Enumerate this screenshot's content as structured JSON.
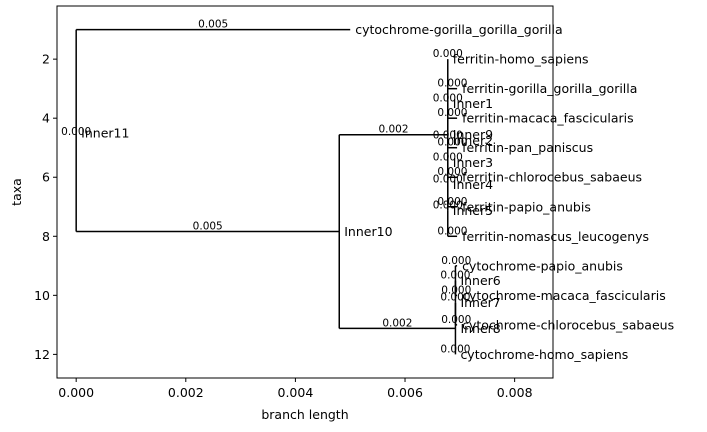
{
  "chart_data": {
    "type": "tree",
    "xlabel": "branch length",
    "ylabel": "taxa",
    "xlim": [
      -0.00035,
      0.0087
    ],
    "ylim": [
      12.8,
      0.2
    ],
    "xticks": [
      {
        "v": 0.0,
        "label": "0.000"
      },
      {
        "v": 0.002,
        "label": "0.002"
      },
      {
        "v": 0.004,
        "label": "0.004"
      },
      {
        "v": 0.006,
        "label": "0.006"
      },
      {
        "v": 0.008,
        "label": "0.008"
      }
    ],
    "yticks": [
      {
        "v": 2,
        "label": "2"
      },
      {
        "v": 4,
        "label": "4"
      },
      {
        "v": 6,
        "label": "6"
      },
      {
        "v": 8,
        "label": "8"
      },
      {
        "v": 10,
        "label": "10"
      },
      {
        "v": 12,
        "label": "12"
      }
    ],
    "branch_color": "#000000",
    "nodes": [
      {
        "id": "Inner11",
        "label": "Inner11",
        "x": 0.0,
        "y": 4.5,
        "bl": "0.000"
      },
      {
        "id": "cyto_gorilla",
        "label": "cytochrome-gorilla_gorilla_gorilla",
        "x": 0.005,
        "y": 1.0,
        "bl": "0.005",
        "parent": "Inner11"
      },
      {
        "id": "Inner10",
        "label": "Inner10",
        "x": 0.0048,
        "y": 7.84,
        "bl": "0.005",
        "parent": "Inner11"
      },
      {
        "id": "Inner9",
        "label": "Inner9",
        "x": 0.00678,
        "y": 4.56,
        "bl": "0.002",
        "parent": "Inner10"
      },
      {
        "id": "Inner8",
        "label": "Inner8",
        "x": 0.00692,
        "y": 11.12,
        "bl": "0.002",
        "parent": "Inner10"
      },
      {
        "id": "fer_homo",
        "label": "ferritin-homo_sapiens",
        "x": 0.00678,
        "y": 2.0,
        "bl": "0.000",
        "parent": "Inner9"
      },
      {
        "id": "Inner5",
        "label": "Inner5",
        "x": 0.00678,
        "y": 7.12,
        "bl": "0.000",
        "parent": "Inner9"
      },
      {
        "id": "Inner4",
        "label": "Inner4",
        "x": 0.00678,
        "y": 6.25,
        "bl": "0.000",
        "parent": "Inner5"
      },
      {
        "id": "fer_nomascus",
        "label": "ferritin-nomascus_leucogenys",
        "x": 0.00695,
        "y": 8.0,
        "bl": "0.000",
        "parent": "Inner5"
      },
      {
        "id": "Inner3",
        "label": "Inner3",
        "x": 0.00678,
        "y": 5.5,
        "bl": "0.000",
        "parent": "Inner4"
      },
      {
        "id": "fer_papio",
        "label": "ferritin-papio_anubis",
        "x": 0.00695,
        "y": 7.0,
        "bl": "0.000",
        "parent": "Inner4"
      },
      {
        "id": "Inner2",
        "label": "Inner2",
        "x": 0.00678,
        "y": 4.75,
        "bl": "0.000",
        "parent": "Inner3"
      },
      {
        "id": "fer_chloro",
        "label": "ferritin-chlorocebus_sabaeus",
        "x": 0.00695,
        "y": 6.0,
        "bl": "0.000",
        "parent": "Inner3"
      },
      {
        "id": "Inner1",
        "label": "Inner1",
        "x": 0.00678,
        "y": 3.5,
        "bl": "0.000",
        "parent": "Inner2"
      },
      {
        "id": "fer_pan",
        "label": "ferritin-pan_paniscus",
        "x": 0.00695,
        "y": 5.0,
        "bl": "0.000",
        "parent": "Inner2"
      },
      {
        "id": "fer_gorilla",
        "label": "ferritin-gorilla_gorilla_gorilla",
        "x": 0.00695,
        "y": 3.0,
        "bl": "0.000",
        "parent": "Inner1"
      },
      {
        "id": "fer_macaca",
        "label": "ferritin-macaca_fascicularis",
        "x": 0.00695,
        "y": 4.0,
        "bl": "0.000",
        "parent": "Inner1"
      },
      {
        "id": "Inner7",
        "label": "Inner7",
        "x": 0.00692,
        "y": 10.25,
        "bl": "0.000",
        "parent": "Inner8"
      },
      {
        "id": "cyto_homo",
        "label": "cytochrome-homo_sapiens",
        "x": 0.00692,
        "y": 12.0,
        "bl": "0.000",
        "parent": "Inner8"
      },
      {
        "id": "Inner6",
        "label": "Inner6",
        "x": 0.00692,
        "y": 9.5,
        "bl": "0.000",
        "parent": "Inner7"
      },
      {
        "id": "cyto_chloro",
        "label": "cytochrome-chlorocebus_sabaeus",
        "x": 0.00695,
        "y": 11.0,
        "bl": "0.000",
        "parent": "Inner7"
      },
      {
        "id": "cyto_papio",
        "label": "cytochrome-papio_anubis",
        "x": 0.00695,
        "y": 9.0,
        "bl": "0.000",
        "parent": "Inner6"
      },
      {
        "id": "cyto_macaca",
        "label": "cytochrome-macaca_fascicularis",
        "x": 0.00695,
        "y": 10.0,
        "bl": "0.000",
        "parent": "Inner6"
      }
    ]
  }
}
